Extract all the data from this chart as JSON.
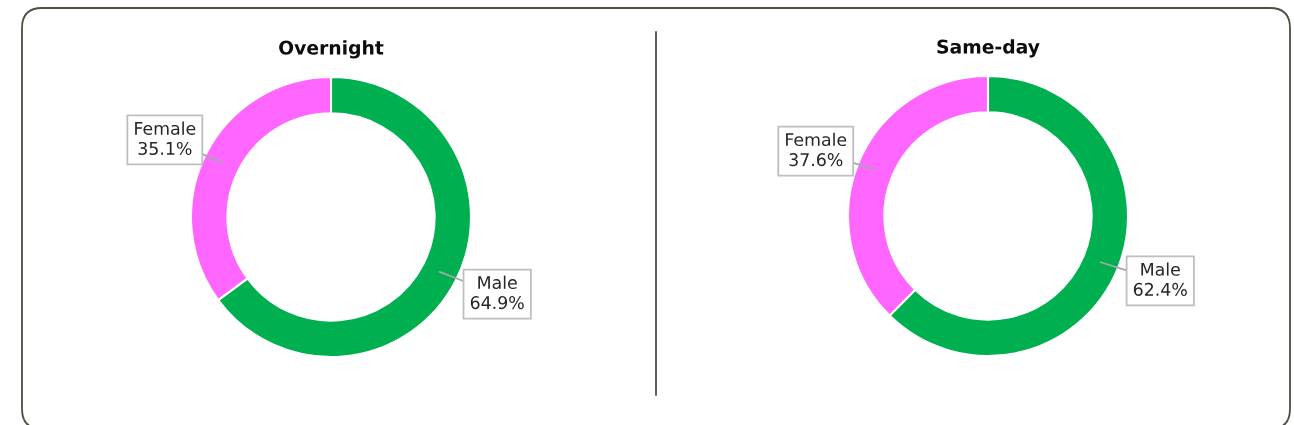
{
  "chart_data": [
    {
      "type": "donut",
      "title": "Overnight",
      "categories": [
        "Male",
        "Female"
      ],
      "values": [
        64.9,
        35.1
      ],
      "colors": [
        "#00b050",
        "#ff66ff"
      ],
      "value_labels": [
        "64.9%",
        "35.1%"
      ]
    },
    {
      "type": "donut",
      "title": "Same-day",
      "categories": [
        "Male",
        "Female"
      ],
      "values": [
        62.4,
        37.6
      ],
      "colors": [
        "#00b050",
        "#ff66ff"
      ],
      "value_labels": [
        "62.4%",
        "37.6%"
      ]
    }
  ]
}
